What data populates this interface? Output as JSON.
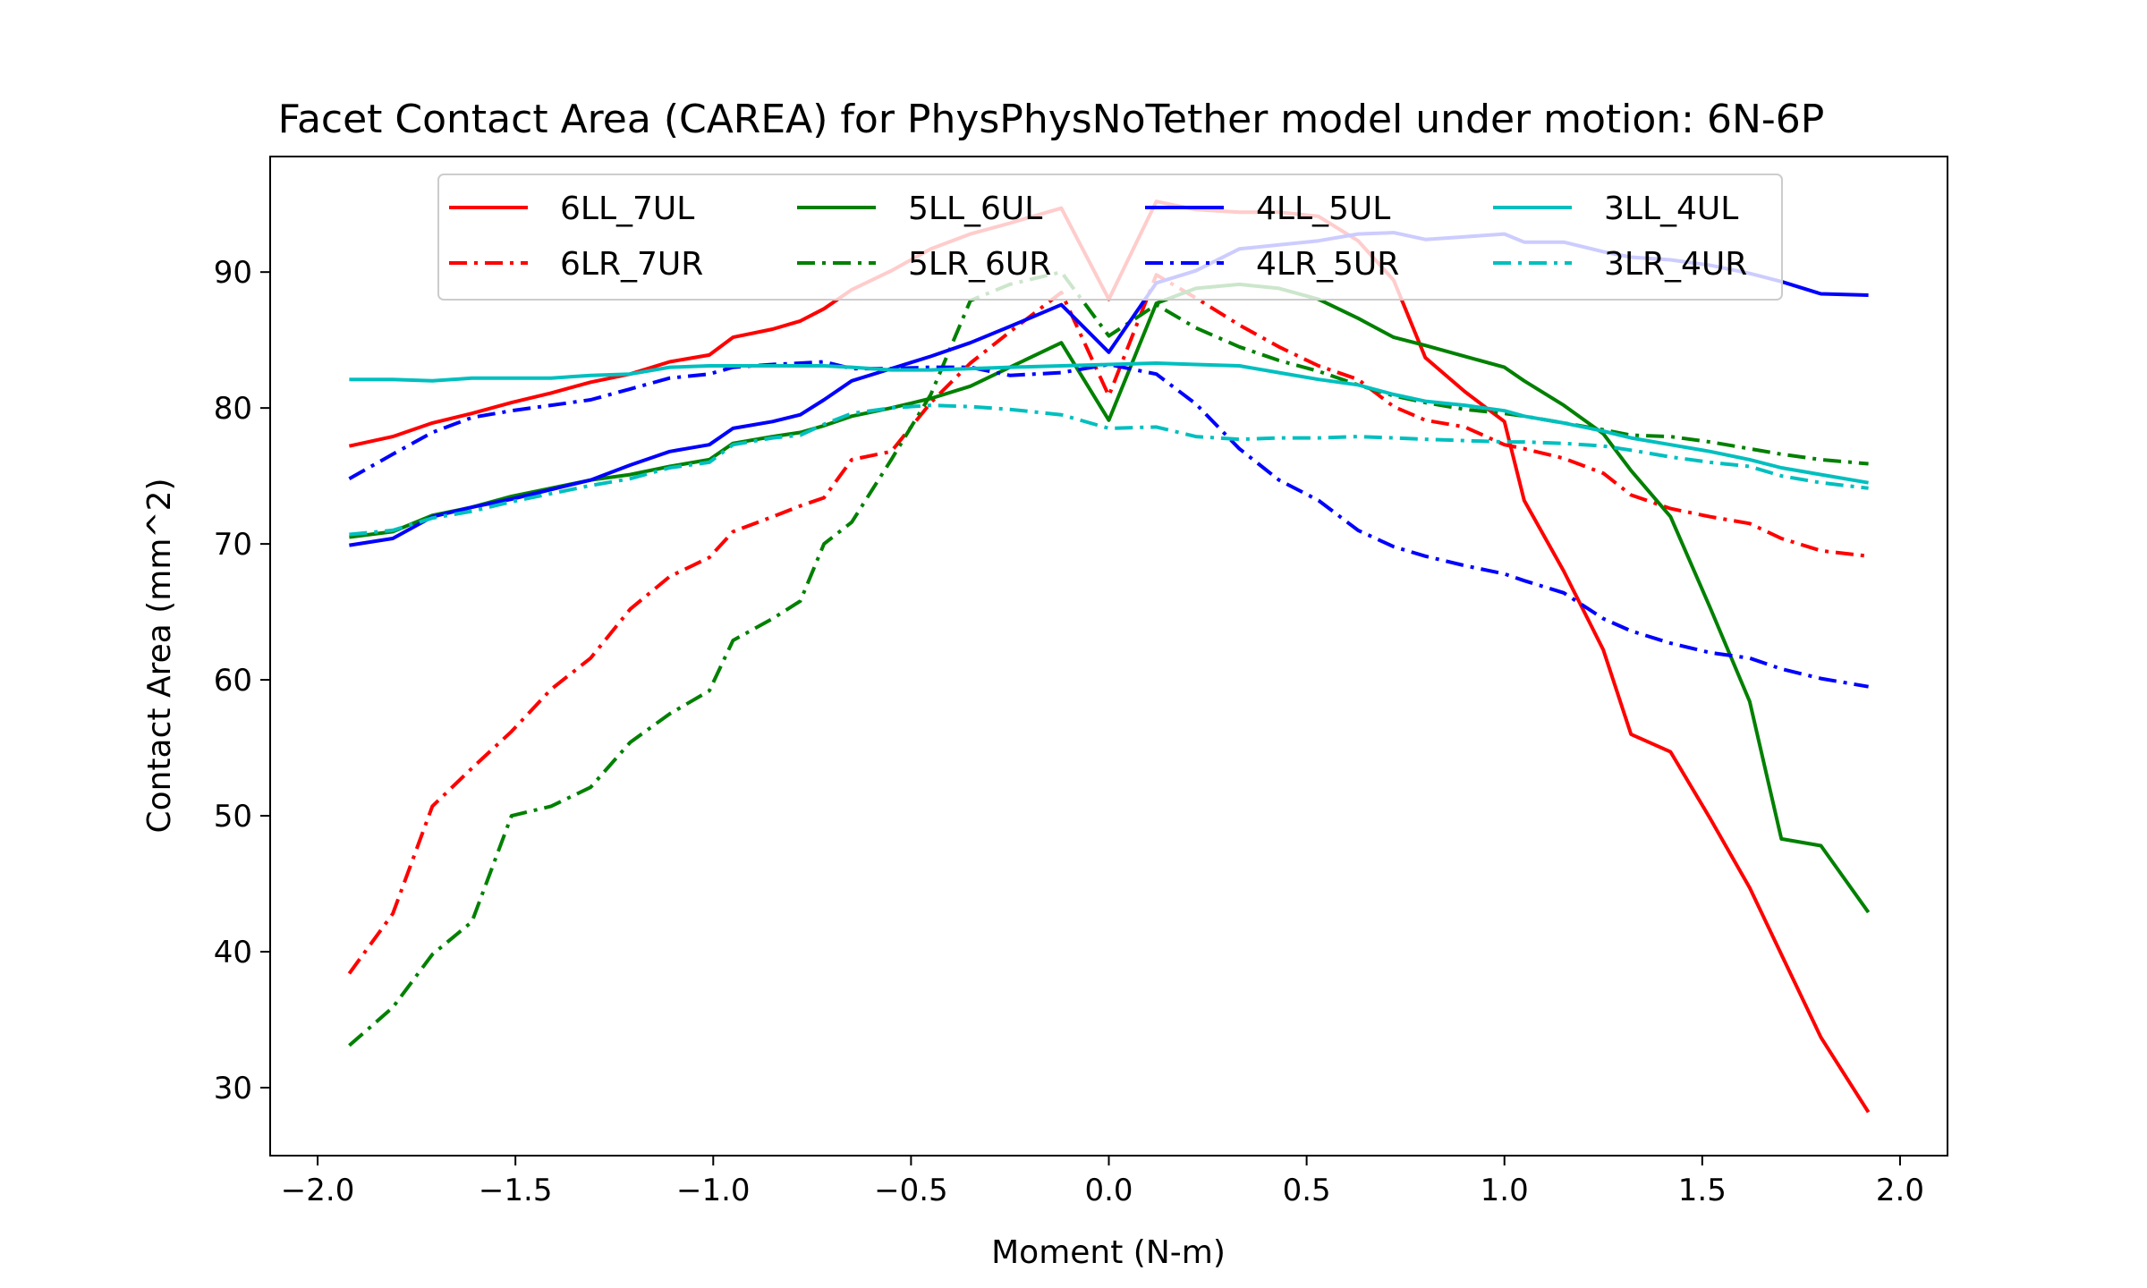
{
  "chart_data": {
    "type": "line",
    "title": "Facet Contact Area (CAREA) for PhysPhysNoTether model under motion: 6N-6P",
    "xlabel": "Moment (N-m)",
    "ylabel": "Contact Area (mm^2)",
    "xlim": [
      -2.12,
      2.12
    ],
    "ylim": [
      25,
      98.5
    ],
    "xticks": [
      -2.0,
      -1.5,
      -1.0,
      -0.5,
      0.0,
      0.5,
      1.0,
      1.5,
      2.0
    ],
    "xtick_labels": [
      "−2.0",
      "−1.5",
      "−1.0",
      "−0.5",
      "0.0",
      "0.5",
      "1.0",
      "1.5",
      "2.0"
    ],
    "yticks": [
      30,
      40,
      50,
      60,
      70,
      80,
      90
    ],
    "ytick_labels": [
      "30",
      "40",
      "50",
      "60",
      "70",
      "80",
      "90"
    ],
    "grid": false,
    "legend": {
      "position": "upper-center",
      "columns": 4
    },
    "x": [
      -1.92,
      -1.81,
      -1.71,
      -1.61,
      -1.51,
      -1.41,
      -1.31,
      -1.21,
      -1.11,
      -1.01,
      -0.95,
      -0.85,
      -0.78,
      -0.72,
      -0.65,
      -0.55,
      -0.45,
      -0.35,
      -0.25,
      -0.12,
      0.0,
      0.12,
      0.22,
      0.33,
      0.43,
      0.53,
      0.63,
      0.72,
      0.8,
      0.9,
      1.0,
      1.05,
      1.15,
      1.25,
      1.32,
      1.42,
      1.52,
      1.62,
      1.7,
      1.8,
      1.92
    ],
    "series": [
      {
        "name": "6LL_7UL",
        "color": "#ff0000",
        "dash": "solid",
        "values": [
          77.2,
          77.9,
          78.9,
          79.6,
          80.4,
          81.1,
          81.9,
          82.5,
          83.4,
          83.9,
          85.2,
          85.8,
          86.4,
          87.3,
          88.7,
          90.1,
          91.7,
          92.8,
          93.6,
          94.7,
          88.0,
          95.2,
          94.6,
          94.4,
          94.4,
          94.1,
          92.3,
          89.4,
          83.7,
          81.2,
          79.0,
          73.2,
          68.0,
          62.2,
          56.0,
          54.7,
          49.8,
          44.7,
          39.8,
          33.7,
          28.2
        ]
      },
      {
        "name": "6LR_7UR",
        "color": "#ff0000",
        "dash": "dashdot",
        "values": [
          38.4,
          42.8,
          50.7,
          53.5,
          56.2,
          59.3,
          61.6,
          65.2,
          67.6,
          69.0,
          70.9,
          72.0,
          72.8,
          73.4,
          76.2,
          76.8,
          80.4,
          83.3,
          85.6,
          88.5,
          80.9,
          89.8,
          88.1,
          86.1,
          84.5,
          83.1,
          82.1,
          80.1,
          79.1,
          78.6,
          77.3,
          77.0,
          76.3,
          75.2,
          73.6,
          72.6,
          72.0,
          71.5,
          70.4,
          69.5,
          69.1
        ]
      },
      {
        "name": "5LL_6UL",
        "color": "#008000",
        "dash": "solid",
        "values": [
          70.5,
          70.9,
          72.1,
          72.7,
          73.5,
          74.1,
          74.7,
          75.1,
          75.7,
          76.2,
          77.4,
          77.9,
          78.2,
          78.7,
          79.4,
          80.0,
          80.7,
          81.6,
          83.0,
          84.8,
          79.1,
          87.7,
          88.8,
          89.1,
          88.8,
          88.0,
          86.6,
          85.2,
          84.6,
          83.8,
          83.0,
          82.0,
          80.2,
          78.1,
          75.4,
          72.0,
          65.3,
          58.4,
          48.3,
          47.8,
          42.9
        ]
      },
      {
        "name": "5LR_6UR",
        "color": "#008000",
        "dash": "dashdot",
        "values": [
          33.1,
          35.9,
          39.8,
          42.2,
          50.0,
          50.7,
          52.1,
          55.4,
          57.5,
          59.2,
          62.9,
          64.5,
          65.8,
          70.0,
          71.6,
          76.2,
          81.0,
          87.9,
          89.1,
          90.0,
          85.3,
          87.6,
          85.9,
          84.5,
          83.5,
          82.7,
          81.7,
          80.9,
          80.4,
          79.9,
          79.6,
          79.4,
          78.9,
          78.4,
          78.0,
          77.9,
          77.5,
          77.0,
          76.6,
          76.2,
          75.9
        ]
      },
      {
        "name": "4LL_5UL",
        "color": "#0000ff",
        "dash": "solid",
        "values": [
          69.9,
          70.4,
          72.0,
          72.7,
          73.3,
          74.0,
          74.7,
          75.8,
          76.8,
          77.3,
          78.5,
          79.0,
          79.5,
          80.6,
          82.0,
          82.9,
          83.8,
          84.8,
          86.0,
          87.6,
          84.1,
          89.2,
          90.1,
          91.7,
          92.0,
          92.3,
          92.8,
          92.9,
          92.4,
          92.6,
          92.8,
          92.2,
          92.2,
          91.5,
          91.1,
          90.9,
          90.5,
          89.9,
          89.3,
          88.4,
          88.3
        ]
      },
      {
        "name": "4LR_5UR",
        "color": "#0000ff",
        "dash": "dashdot",
        "values": [
          74.8,
          76.6,
          78.2,
          79.3,
          79.8,
          80.2,
          80.6,
          81.4,
          82.2,
          82.5,
          83.0,
          83.2,
          83.3,
          83.4,
          82.9,
          82.9,
          83.0,
          83.0,
          82.4,
          82.6,
          83.2,
          82.5,
          80.3,
          77.0,
          74.7,
          73.2,
          71.0,
          69.8,
          69.1,
          68.4,
          67.8,
          67.3,
          66.4,
          64.5,
          63.6,
          62.7,
          62.0,
          61.6,
          60.8,
          60.1,
          59.5
        ]
      },
      {
        "name": "3LL_4UL",
        "color": "#00bfbf",
        "dash": "solid",
        "values": [
          82.1,
          82.1,
          82.0,
          82.2,
          82.2,
          82.2,
          82.4,
          82.5,
          83.0,
          83.1,
          83.1,
          83.1,
          83.1,
          83.1,
          83.0,
          82.8,
          82.8,
          82.9,
          83.0,
          83.1,
          83.2,
          83.3,
          83.2,
          83.1,
          82.6,
          82.1,
          81.7,
          81.0,
          80.5,
          80.2,
          79.8,
          79.4,
          78.9,
          78.3,
          77.8,
          77.3,
          76.8,
          76.2,
          75.6,
          75.1,
          74.5
        ]
      },
      {
        "name": "3LR_4UR",
        "color": "#00bfbf",
        "dash": "dashdot",
        "values": [
          70.7,
          71.0,
          71.9,
          72.4,
          73.1,
          73.7,
          74.3,
          74.8,
          75.6,
          76.0,
          77.3,
          77.8,
          78.0,
          78.8,
          79.6,
          80.0,
          80.2,
          80.1,
          79.9,
          79.5,
          78.5,
          78.6,
          77.9,
          77.7,
          77.8,
          77.8,
          77.9,
          77.8,
          77.7,
          77.6,
          77.5,
          77.5,
          77.4,
          77.2,
          76.9,
          76.4,
          76.0,
          75.7,
          75.0,
          74.5,
          74.1
        ]
      }
    ]
  }
}
